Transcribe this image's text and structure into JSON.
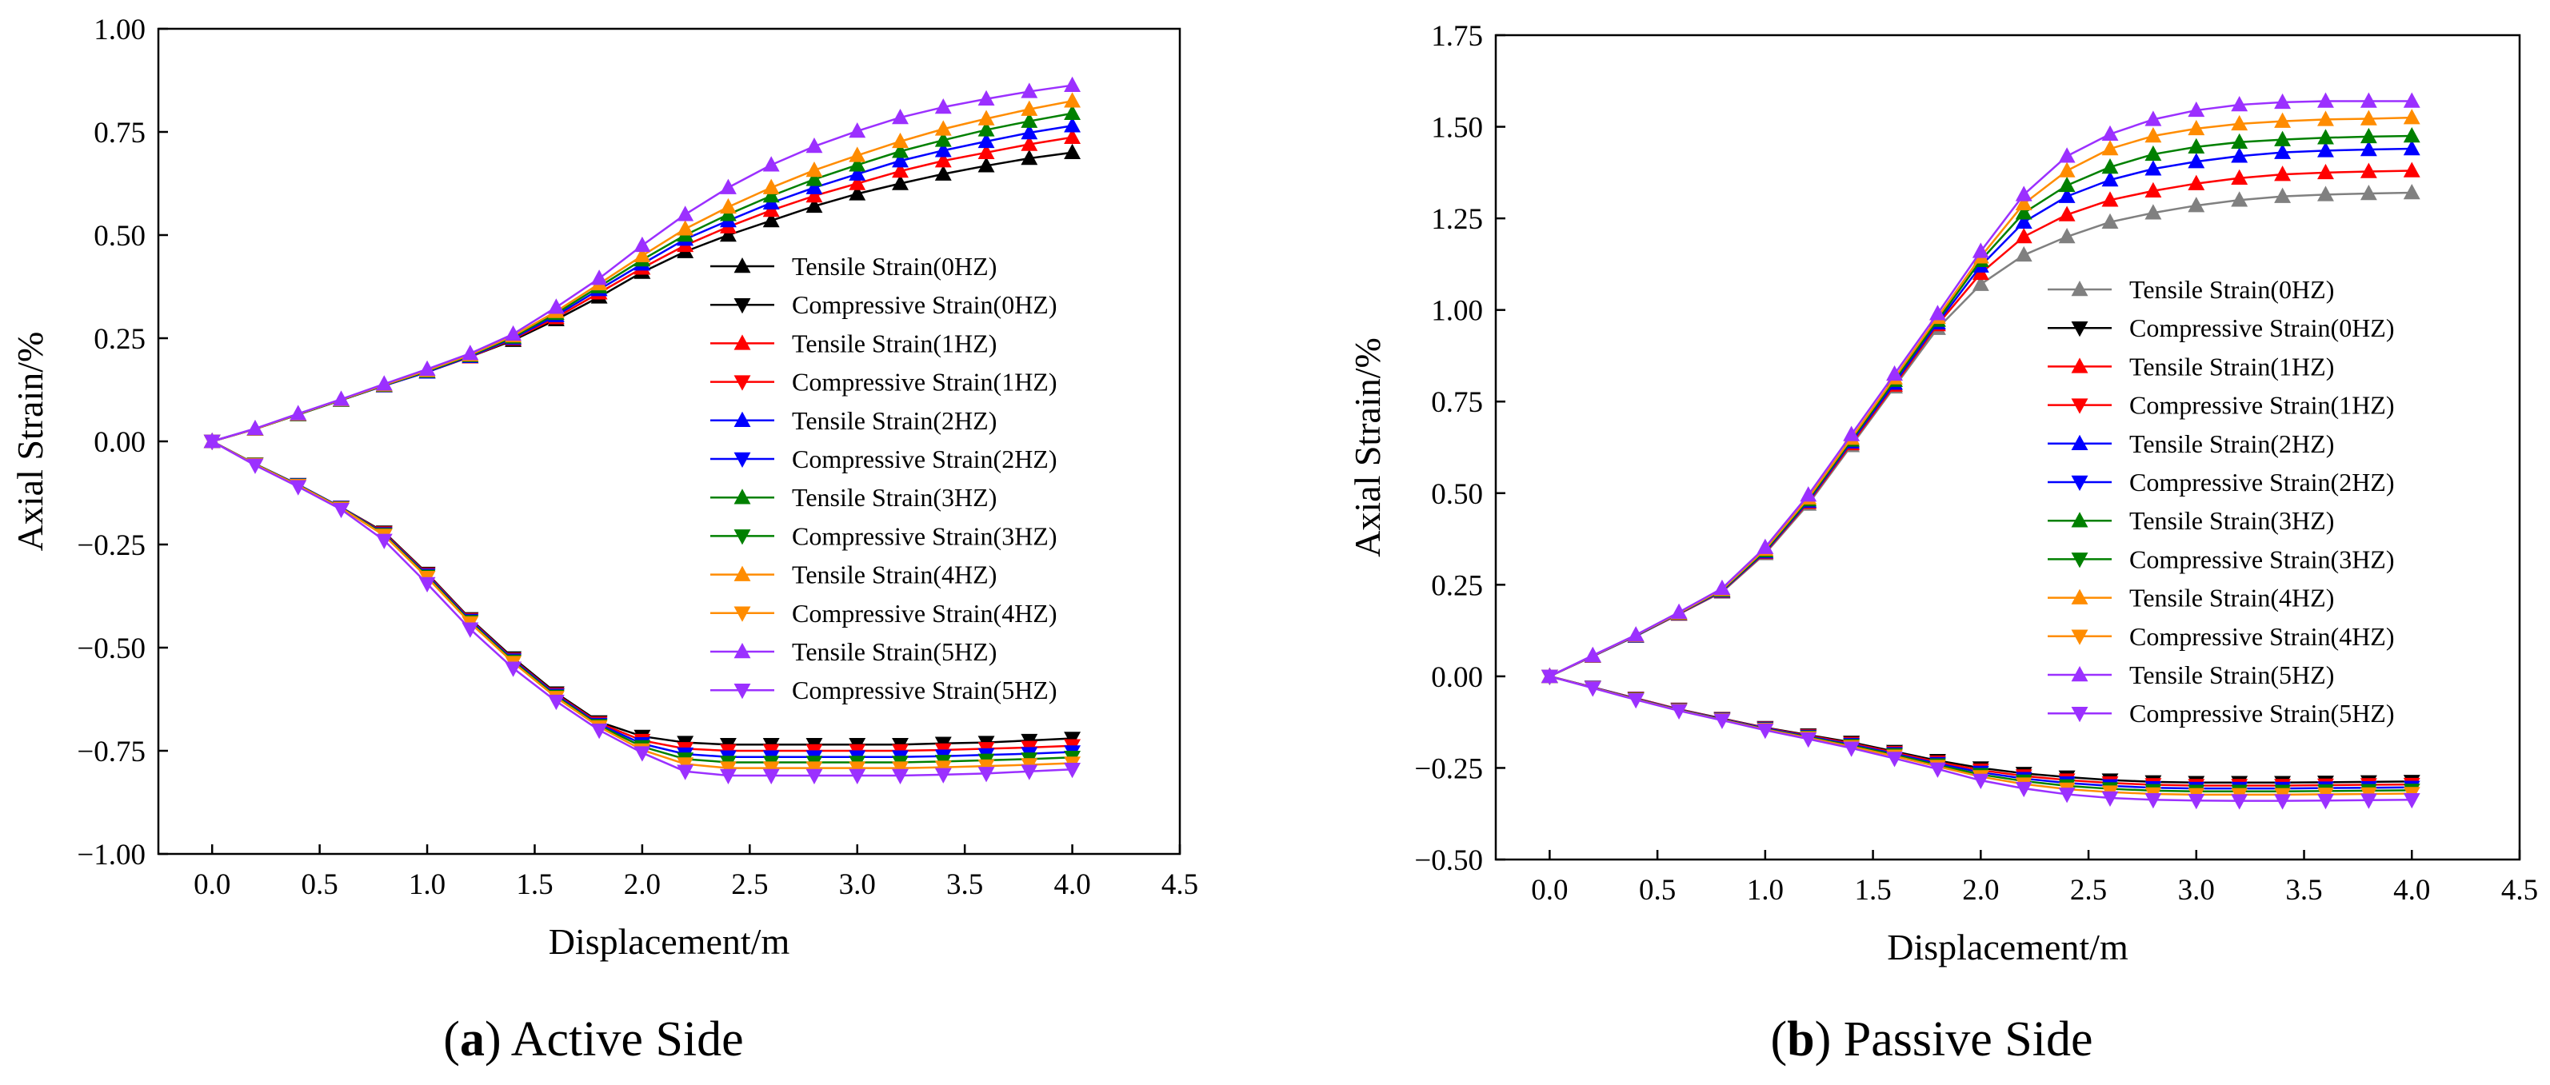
{
  "figure": {
    "captions": [
      {
        "letter": "a",
        "text": " Active Side",
        "open": "(",
        "close": ")"
      },
      {
        "letter": "b",
        "text": " Passive Side",
        "open": "(",
        "close": ")"
      }
    ]
  },
  "chart_data": [
    {
      "type": "line",
      "panel": "a",
      "title": "Active Side",
      "xlabel": "Displacement/m",
      "ylabel": "Axial Strain/%",
      "xlim": [
        -0.25,
        4.5
      ],
      "ylim": [
        -1.0,
        1.0
      ],
      "xticks": [
        0.0,
        0.5,
        1.0,
        1.5,
        2.0,
        2.5,
        3.0,
        3.5,
        4.0,
        4.5
      ],
      "xtick_labels": [
        "0.0",
        "0.5",
        "1.0",
        "1.5",
        "2.0",
        "2.5",
        "3.0",
        "3.5",
        "4.0",
        "4.5"
      ],
      "yticks": [
        -1.0,
        -0.75,
        -0.5,
        -0.25,
        0.0,
        0.25,
        0.5,
        0.75,
        1.0
      ],
      "ytick_labels": [
        "−1.00",
        "−0.75",
        "−0.50",
        "−0.25",
        "0.00",
        "0.25",
        "0.50",
        "0.75",
        "1.00"
      ],
      "legend_position": "center-right",
      "grid": false,
      "x": [
        0.0,
        0.2,
        0.4,
        0.6,
        0.8,
        1.0,
        1.2,
        1.4,
        1.6,
        1.8,
        2.0,
        2.2,
        2.4,
        2.6,
        2.8,
        3.0,
        3.2,
        3.4,
        3.6,
        3.8,
        4.0
      ],
      "series": [
        {
          "name": "Tensile Strain(0HZ)",
          "color": "#000000",
          "marker": "up",
          "values": [
            0.0,
            0.03,
            0.065,
            0.1,
            0.135,
            0.168,
            0.205,
            0.245,
            0.295,
            0.35,
            0.41,
            0.46,
            0.5,
            0.535,
            0.57,
            0.6,
            0.625,
            0.648,
            0.668,
            0.686,
            0.7
          ]
        },
        {
          "name": "Compressive Strain(0HZ)",
          "color": "#000000",
          "marker": "down",
          "values": [
            0.0,
            -0.055,
            -0.105,
            -0.16,
            -0.22,
            -0.32,
            -0.43,
            -0.525,
            -0.61,
            -0.68,
            -0.715,
            -0.73,
            -0.735,
            -0.735,
            -0.735,
            -0.735,
            -0.735,
            -0.732,
            -0.73,
            -0.725,
            -0.72
          ]
        },
        {
          "name": "Tensile Strain(1HZ)",
          "color": "#ff0000",
          "marker": "up",
          "values": [
            0.0,
            0.03,
            0.065,
            0.1,
            0.135,
            0.168,
            0.205,
            0.248,
            0.3,
            0.36,
            0.42,
            0.475,
            0.52,
            0.56,
            0.595,
            0.625,
            0.655,
            0.68,
            0.7,
            0.72,
            0.737
          ]
        },
        {
          "name": "Compressive Strain(1HZ)",
          "color": "#ff0000",
          "marker": "down",
          "values": [
            0.0,
            -0.055,
            -0.105,
            -0.16,
            -0.222,
            -0.322,
            -0.432,
            -0.528,
            -0.613,
            -0.683,
            -0.725,
            -0.745,
            -0.75,
            -0.75,
            -0.75,
            -0.75,
            -0.75,
            -0.748,
            -0.745,
            -0.742,
            -0.738
          ]
        },
        {
          "name": "Tensile Strain(2HZ)",
          "color": "#0000ff",
          "marker": "up",
          "values": [
            0.0,
            0.03,
            0.065,
            0.1,
            0.135,
            0.168,
            0.206,
            0.25,
            0.305,
            0.368,
            0.43,
            0.49,
            0.535,
            0.578,
            0.615,
            0.648,
            0.68,
            0.705,
            0.727,
            0.748,
            0.765
          ]
        },
        {
          "name": "Compressive Strain(2HZ)",
          "color": "#0000ff",
          "marker": "down",
          "values": [
            0.0,
            -0.055,
            -0.105,
            -0.16,
            -0.224,
            -0.324,
            -0.434,
            -0.53,
            -0.615,
            -0.686,
            -0.733,
            -0.758,
            -0.765,
            -0.765,
            -0.765,
            -0.765,
            -0.765,
            -0.763,
            -0.76,
            -0.757,
            -0.753
          ]
        },
        {
          "name": "Tensile Strain(3HZ)",
          "color": "#008000",
          "marker": "up",
          "values": [
            0.0,
            0.03,
            0.065,
            0.1,
            0.136,
            0.17,
            0.208,
            0.253,
            0.31,
            0.375,
            0.44,
            0.5,
            0.55,
            0.595,
            0.635,
            0.67,
            0.703,
            0.73,
            0.755,
            0.776,
            0.795
          ]
        },
        {
          "name": "Compressive Strain(3HZ)",
          "color": "#008000",
          "marker": "down",
          "values": [
            0.0,
            -0.055,
            -0.106,
            -0.161,
            -0.226,
            -0.327,
            -0.437,
            -0.533,
            -0.618,
            -0.689,
            -0.74,
            -0.77,
            -0.778,
            -0.778,
            -0.778,
            -0.778,
            -0.778,
            -0.776,
            -0.773,
            -0.77,
            -0.766
          ]
        },
        {
          "name": "Tensile Strain(4HZ)",
          "color": "#ff8c00",
          "marker": "up",
          "values": [
            0.0,
            0.03,
            0.066,
            0.101,
            0.137,
            0.172,
            0.21,
            0.256,
            0.315,
            0.382,
            0.45,
            0.515,
            0.568,
            0.615,
            0.657,
            0.693,
            0.727,
            0.757,
            0.782,
            0.805,
            0.825
          ]
        },
        {
          "name": "Compressive Strain(4HZ)",
          "color": "#ff8c00",
          "marker": "down",
          "values": [
            0.0,
            -0.056,
            -0.107,
            -0.162,
            -0.228,
            -0.33,
            -0.44,
            -0.536,
            -0.621,
            -0.692,
            -0.748,
            -0.782,
            -0.792,
            -0.792,
            -0.792,
            -0.792,
            -0.792,
            -0.79,
            -0.787,
            -0.784,
            -0.78
          ]
        },
        {
          "name": "Tensile Strain(5HZ)",
          "color": "#9b30ff",
          "marker": "up",
          "values": [
            0.0,
            0.031,
            0.067,
            0.102,
            0.139,
            0.175,
            0.213,
            0.26,
            0.325,
            0.395,
            0.475,
            0.55,
            0.615,
            0.67,
            0.715,
            0.752,
            0.785,
            0.81,
            0.83,
            0.848,
            0.863
          ]
        },
        {
          "name": "Compressive Strain(5HZ)",
          "color": "#9b30ff",
          "marker": "down",
          "values": [
            0.0,
            -0.058,
            -0.11,
            -0.165,
            -0.24,
            -0.345,
            -0.455,
            -0.55,
            -0.63,
            -0.7,
            -0.755,
            -0.8,
            -0.81,
            -0.81,
            -0.81,
            -0.81,
            -0.81,
            -0.808,
            -0.805,
            -0.8,
            -0.795
          ]
        }
      ]
    },
    {
      "type": "line",
      "panel": "b",
      "title": "Passive Side",
      "xlabel": "Displacement/m",
      "ylabel": "Axial Strain/%",
      "xlim": [
        -0.25,
        4.5
      ],
      "ylim": [
        -0.5,
        1.75
      ],
      "xticks": [
        0.0,
        0.5,
        1.0,
        1.5,
        2.0,
        2.5,
        3.0,
        3.5,
        4.0,
        4.5
      ],
      "xtick_labels": [
        "0.0",
        "0.5",
        "1.0",
        "1.5",
        "2.0",
        "2.5",
        "3.0",
        "3.5",
        "4.0",
        "4.5"
      ],
      "yticks": [
        -0.5,
        -0.25,
        0.0,
        0.25,
        0.5,
        0.75,
        1.0,
        1.25,
        1.5,
        1.75
      ],
      "ytick_labels": [
        "−0.50",
        "−0.25",
        "0.00",
        "0.25",
        "0.50",
        "0.75",
        "1.00",
        "1.25",
        "1.50",
        "1.75"
      ],
      "legend_position": "center-right",
      "grid": false,
      "x": [
        0.0,
        0.2,
        0.4,
        0.6,
        0.8,
        1.0,
        1.2,
        1.4,
        1.6,
        1.8,
        2.0,
        2.2,
        2.4,
        2.6,
        2.8,
        3.0,
        3.2,
        3.4,
        3.6,
        3.8,
        4.0
      ],
      "series": [
        {
          "name": "Tensile Strain(0HZ)",
          "color": "#808080",
          "marker": "up",
          "values": [
            0.0,
            0.055,
            0.11,
            0.17,
            0.23,
            0.335,
            0.47,
            0.63,
            0.79,
            0.95,
            1.07,
            1.15,
            1.2,
            1.24,
            1.265,
            1.285,
            1.3,
            1.31,
            1.315,
            1.318,
            1.32
          ]
        },
        {
          "name": "Compressive Strain(0HZ)",
          "color": "#000000",
          "marker": "down",
          "values": [
            0.0,
            -0.03,
            -0.06,
            -0.09,
            -0.115,
            -0.14,
            -0.16,
            -0.18,
            -0.205,
            -0.23,
            -0.25,
            -0.265,
            -0.275,
            -0.283,
            -0.288,
            -0.29,
            -0.29,
            -0.29,
            -0.289,
            -0.288,
            -0.287
          ]
        },
        {
          "name": "Tensile Strain(1HZ)",
          "color": "#ff0000",
          "marker": "up",
          "values": [
            0.0,
            0.055,
            0.11,
            0.17,
            0.232,
            0.338,
            0.475,
            0.635,
            0.795,
            0.96,
            1.1,
            1.2,
            1.26,
            1.3,
            1.325,
            1.345,
            1.36,
            1.37,
            1.375,
            1.378,
            1.38
          ]
        },
        {
          "name": "Compressive Strain(1HZ)",
          "color": "#ff0000",
          "marker": "down",
          "values": [
            0.0,
            -0.03,
            -0.06,
            -0.09,
            -0.116,
            -0.141,
            -0.162,
            -0.183,
            -0.208,
            -0.234,
            -0.256,
            -0.272,
            -0.283,
            -0.291,
            -0.296,
            -0.298,
            -0.298,
            -0.298,
            -0.297,
            -0.296,
            -0.295
          ]
        },
        {
          "name": "Tensile Strain(2HZ)",
          "color": "#0000ff",
          "marker": "up",
          "values": [
            0.0,
            0.055,
            0.11,
            0.171,
            0.233,
            0.34,
            0.478,
            0.64,
            0.8,
            0.965,
            1.12,
            1.24,
            1.31,
            1.355,
            1.385,
            1.405,
            1.42,
            1.43,
            1.435,
            1.438,
            1.44
          ]
        },
        {
          "name": "Compressive Strain(2HZ)",
          "color": "#0000ff",
          "marker": "down",
          "values": [
            0.0,
            -0.03,
            -0.061,
            -0.091,
            -0.117,
            -0.142,
            -0.164,
            -0.186,
            -0.211,
            -0.238,
            -0.262,
            -0.279,
            -0.291,
            -0.299,
            -0.304,
            -0.306,
            -0.306,
            -0.306,
            -0.305,
            -0.304,
            -0.303
          ]
        },
        {
          "name": "Tensile Strain(3HZ)",
          "color": "#008000",
          "marker": "up",
          "values": [
            0.0,
            0.056,
            0.111,
            0.172,
            0.235,
            0.343,
            0.482,
            0.645,
            0.808,
            0.972,
            1.135,
            1.265,
            1.34,
            1.39,
            1.425,
            1.445,
            1.458,
            1.465,
            1.47,
            1.473,
            1.475
          ]
        },
        {
          "name": "Compressive Strain(3HZ)",
          "color": "#008000",
          "marker": "down",
          "values": [
            0.0,
            -0.031,
            -0.062,
            -0.092,
            -0.118,
            -0.144,
            -0.166,
            -0.189,
            -0.214,
            -0.242,
            -0.268,
            -0.286,
            -0.299,
            -0.307,
            -0.312,
            -0.314,
            -0.314,
            -0.314,
            -0.313,
            -0.312,
            -0.311
          ]
        },
        {
          "name": "Tensile Strain(4HZ)",
          "color": "#ff8c00",
          "marker": "up",
          "values": [
            0.0,
            0.056,
            0.112,
            0.173,
            0.237,
            0.347,
            0.487,
            0.65,
            0.815,
            0.98,
            1.145,
            1.29,
            1.38,
            1.44,
            1.475,
            1.495,
            1.508,
            1.515,
            1.52,
            1.522,
            1.525
          ]
        },
        {
          "name": "Compressive Strain(4HZ)",
          "color": "#ff8c00",
          "marker": "down",
          "values": [
            0.0,
            -0.031,
            -0.063,
            -0.093,
            -0.119,
            -0.145,
            -0.168,
            -0.192,
            -0.218,
            -0.246,
            -0.274,
            -0.294,
            -0.308,
            -0.316,
            -0.321,
            -0.323,
            -0.323,
            -0.323,
            -0.322,
            -0.321,
            -0.32
          ]
        },
        {
          "name": "Tensile Strain(5HZ)",
          "color": "#9b30ff",
          "marker": "up",
          "values": [
            0.0,
            0.057,
            0.113,
            0.175,
            0.24,
            0.352,
            0.495,
            0.66,
            0.825,
            0.99,
            1.16,
            1.315,
            1.42,
            1.48,
            1.52,
            1.545,
            1.56,
            1.567,
            1.57,
            1.57,
            1.57
          ]
        },
        {
          "name": "Compressive Strain(5HZ)",
          "color": "#9b30ff",
          "marker": "down",
          "values": [
            0.0,
            -0.032,
            -0.064,
            -0.094,
            -0.12,
            -0.147,
            -0.171,
            -0.196,
            -0.224,
            -0.253,
            -0.284,
            -0.306,
            -0.322,
            -0.332,
            -0.337,
            -0.339,
            -0.34,
            -0.34,
            -0.339,
            -0.338,
            -0.337
          ]
        }
      ]
    }
  ]
}
